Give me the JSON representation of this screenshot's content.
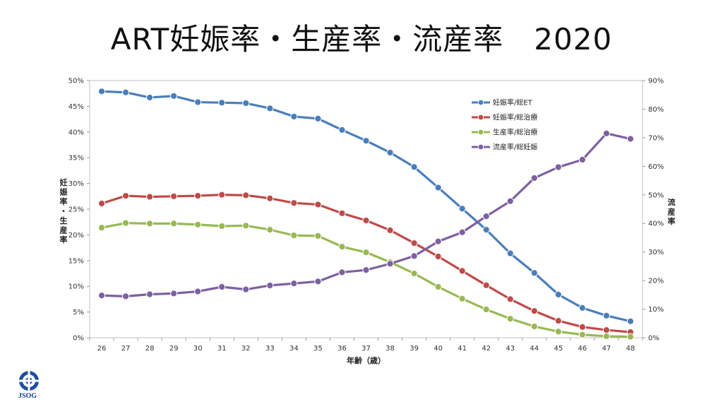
{
  "title": "ART妊娠率・生産率・流産率　2020",
  "logo": {
    "text": "JSOG"
  },
  "chart_data": {
    "type": "line",
    "xlabel": "年齢（歳）",
    "ylabel_left": "妊娠率・生産率",
    "ylabel_right": "流産率",
    "categories": [
      "26",
      "27",
      "28",
      "29",
      "30",
      "31",
      "32",
      "33",
      "34",
      "35",
      "36",
      "37",
      "38",
      "39",
      "40",
      "41",
      "42",
      "43",
      "44",
      "45",
      "46",
      "47",
      "48"
    ],
    "ylim_left": [
      0,
      50
    ],
    "yticks_left": [
      "0%",
      "5%",
      "10%",
      "15%",
      "20%",
      "25%",
      "30%",
      "35%",
      "40%",
      "45%",
      "50%"
    ],
    "ylim_right": [
      0,
      90
    ],
    "yticks_right": [
      "0%",
      "10%",
      "20%",
      "30%",
      "40%",
      "50%",
      "60%",
      "70%",
      "80%",
      "90%"
    ],
    "grid": false,
    "legend_position": "top-right",
    "series": [
      {
        "name": "妊娠率/総ET",
        "axis": "left",
        "color": "#4a7ebb",
        "values": [
          47.9,
          47.7,
          46.7,
          47.0,
          45.8,
          45.7,
          45.6,
          44.6,
          43.0,
          42.6,
          40.4,
          38.3,
          36.0,
          33.2,
          29.2,
          25.1,
          21.0,
          16.4,
          12.6,
          8.4,
          5.8,
          4.3,
          3.2
        ]
      },
      {
        "name": "妊娠率/総治療",
        "axis": "left",
        "color": "#be4b48",
        "values": [
          26.1,
          27.6,
          27.4,
          27.5,
          27.6,
          27.8,
          27.7,
          27.1,
          26.2,
          25.9,
          24.2,
          22.8,
          20.9,
          18.4,
          15.8,
          13.0,
          10.2,
          7.5,
          5.2,
          3.3,
          2.1,
          1.5,
          1.1
        ]
      },
      {
        "name": "生産率/総治療",
        "axis": "left",
        "color": "#98b954",
        "values": [
          21.4,
          22.3,
          22.2,
          22.2,
          22.0,
          21.7,
          21.8,
          21.0,
          19.9,
          19.8,
          17.7,
          16.6,
          14.7,
          12.5,
          9.9,
          7.6,
          5.5,
          3.7,
          2.2,
          1.2,
          0.6,
          0.3,
          0.2
        ]
      },
      {
        "name": "流産率/総妊娠",
        "axis": "right",
        "color": "#7d60a0",
        "values": [
          14.8,
          14.5,
          15.2,
          15.5,
          16.2,
          17.8,
          16.9,
          18.3,
          19.0,
          19.7,
          22.9,
          23.7,
          25.9,
          28.6,
          33.7,
          36.9,
          42.5,
          47.8,
          55.9,
          59.7,
          62.3,
          71.5,
          69.6
        ]
      }
    ]
  }
}
